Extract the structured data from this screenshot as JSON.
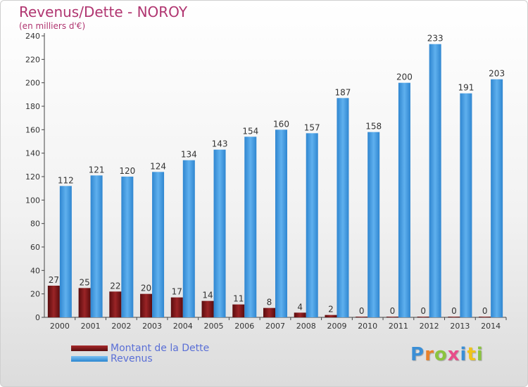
{
  "title": "Revenus/Dette - NOROY",
  "subtitle": "(en milliers d'€)",
  "logo_text": "Proxiti",
  "colors": {
    "dette": "#7a1416",
    "revenus": "#4aa3e6",
    "title": "#b03570",
    "legend_text": "#5a6fd6"
  },
  "legend": [
    {
      "label": "Montant de la Dette",
      "color": "#7a1416"
    },
    {
      "label": "Revenus",
      "color": "#4aa3e6"
    }
  ],
  "chart_data": {
    "type": "bar",
    "title": "Revenus/Dette - NOROY",
    "subtitle": "(en milliers d'€)",
    "categories": [
      "2000",
      "2001",
      "2002",
      "2003",
      "2004",
      "2005",
      "2006",
      "2007",
      "2008",
      "2009",
      "2010",
      "2011",
      "2012",
      "2013",
      "2014"
    ],
    "series": [
      {
        "name": "Montant de la Dette",
        "color": "#7a1416",
        "values": [
          27,
          25,
          22,
          20,
          17,
          14,
          11,
          8,
          4,
          2,
          0,
          0,
          0,
          0,
          0
        ]
      },
      {
        "name": "Revenus",
        "color": "#4aa3e6",
        "values": [
          112,
          121,
          120,
          124,
          134,
          143,
          154,
          160,
          157,
          187,
          158,
          200,
          233,
          191,
          203
        ]
      }
    ],
    "ylim": [
      0,
      240
    ],
    "yticks": [
      0,
      20,
      40,
      60,
      80,
      100,
      120,
      140,
      160,
      180,
      200,
      220,
      240
    ],
    "grid": false,
    "legend_position": "bottom-left"
  }
}
